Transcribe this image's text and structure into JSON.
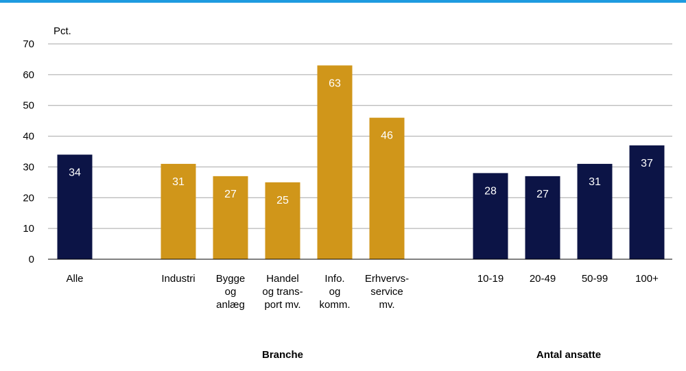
{
  "chart_data": {
    "type": "bar",
    "ylabel": "Pct.",
    "ylim": [
      0,
      70
    ],
    "yticks": [
      0,
      10,
      20,
      30,
      40,
      50,
      60,
      70
    ],
    "grid": true,
    "categories": [
      {
        "label": "Alle",
        "value": 34,
        "color": "#0c1446"
      },
      {
        "label": "Industri",
        "value": 31,
        "color": "#d0961a"
      },
      {
        "label": "Bygge\nog\nanlæg",
        "value": 27,
        "color": "#d0961a"
      },
      {
        "label": "Handel\nog trans-\nport mv.",
        "value": 25,
        "color": "#d0961a"
      },
      {
        "label": "Info.\nog\nkomm.",
        "value": 63,
        "color": "#d0961a"
      },
      {
        "label": "Erhvervs-\nservice\nmv.",
        "value": 46,
        "color": "#d0961a"
      },
      {
        "label": "10-19",
        "value": 28,
        "color": "#0c1446"
      },
      {
        "label": "20-49",
        "value": 27,
        "color": "#0c1446"
      },
      {
        "label": "50-99",
        "value": 31,
        "color": "#0c1446"
      },
      {
        "label": "100+",
        "value": 37,
        "color": "#0c1446"
      }
    ],
    "group_labels": [
      {
        "label": "Branche",
        "from": 1,
        "to": 5
      },
      {
        "label": "Antal ansatte",
        "from": 6,
        "to": 9
      }
    ]
  },
  "colors": {
    "accent_rule": "#1e9be0",
    "navy": "#0c1446",
    "gold": "#d0961a",
    "gridline": "#a6a6a6",
    "value_label": "#ffffff"
  }
}
